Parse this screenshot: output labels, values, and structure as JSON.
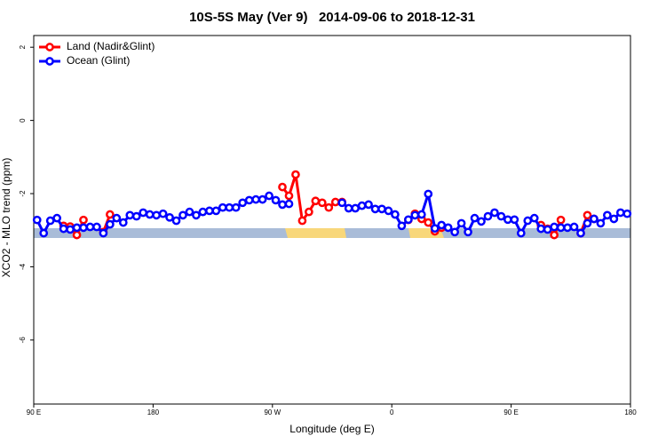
{
  "chart_data": {
    "type": "line",
    "title": "10S-5S May (Ver 9)   2014-09-06 to 2018-12-31",
    "x_label": "Longitude (deg E)",
    "y_label": "XCO2 - MLO trend (ppm)",
    "x": [
      92.5,
      97.5,
      102.5,
      107.5,
      112.5,
      117.5,
      122.5,
      127.5,
      132.5,
      137.5,
      142.5,
      147.5,
      152.5,
      157.5,
      162.5,
      167.5,
      172.5,
      177.5,
      182.5,
      187.5,
      192.5,
      197.5,
      202.5,
      207.5,
      212.5,
      217.5,
      222.5,
      227.5,
      232.5,
      237.5,
      242.5,
      247.5,
      252.5,
      257.5,
      262.5,
      267.5,
      272.5,
      277.5,
      282.5,
      287.5,
      292.5,
      297.5,
      302.5,
      307.5,
      312.5,
      317.5,
      322.5,
      327.5,
      332.5,
      337.5,
      342.5,
      347.5,
      352.5,
      357.5,
      362.5,
      367.5,
      372.5,
      377.5,
      382.5,
      387.5,
      392.5,
      397.5,
      402.5,
      407.5,
      412.5,
      417.5,
      422.5,
      427.5,
      432.5,
      437.5,
      442.5,
      447.5,
      452.5,
      457.5,
      462.5,
      467.5,
      472.5,
      477.5,
      482.5,
      487.5,
      492.5,
      497.5,
      502.5,
      507.5,
      512.5,
      517.5,
      522.5,
      527.5,
      532.5,
      537.5
    ],
    "series": [
      {
        "name": "Land (Nadir&Glint)",
        "color": "#ff0000",
        "values": [
          null,
          null,
          null,
          null,
          -2.88,
          -2.9,
          -3.13,
          -2.72,
          null,
          null,
          -3.05,
          -2.57,
          null,
          null,
          null,
          null,
          null,
          null,
          null,
          null,
          null,
          null,
          null,
          null,
          null,
          null,
          null,
          null,
          null,
          null,
          null,
          null,
          null,
          null,
          null,
          null,
          null,
          -1.82,
          -2.06,
          -1.48,
          -2.74,
          -2.5,
          -2.2,
          -2.25,
          -2.38,
          -2.23,
          -2.23,
          null,
          null,
          null,
          null,
          null,
          null,
          null,
          null,
          null,
          -2.72,
          -2.55,
          -2.69,
          -2.79,
          -3.03,
          -2.93,
          null,
          null,
          null,
          null,
          null,
          null,
          null,
          null,
          null,
          null,
          null,
          null,
          null,
          null,
          -2.86,
          -2.96,
          -3.13,
          -2.72,
          null,
          null,
          -3.08,
          -2.59,
          -2.69,
          null,
          null,
          null,
          null,
          null
        ]
      },
      {
        "name": "Ocean (Glint)",
        "color": "#0000ff",
        "values": [
          -2.72,
          -3.08,
          -2.74,
          -2.67,
          -2.96,
          -2.98,
          -2.93,
          -2.93,
          -2.91,
          -2.91,
          -3.08,
          -2.84,
          -2.67,
          -2.79,
          -2.59,
          -2.62,
          -2.52,
          -2.57,
          -2.59,
          -2.55,
          -2.65,
          -2.74,
          -2.59,
          -2.5,
          -2.59,
          -2.5,
          -2.47,
          -2.47,
          -2.38,
          -2.38,
          -2.38,
          -2.25,
          -2.18,
          -2.16,
          -2.16,
          -2.06,
          -2.18,
          -2.3,
          -2.28,
          null,
          null,
          null,
          null,
          null,
          null,
          null,
          -2.25,
          -2.4,
          -2.4,
          -2.33,
          -2.3,
          -2.42,
          -2.42,
          -2.47,
          -2.57,
          -2.88,
          -2.71,
          -2.59,
          -2.57,
          -2.01,
          -2.95,
          -2.86,
          -2.93,
          -3.05,
          -2.81,
          -3.05,
          -2.67,
          -2.76,
          -2.62,
          -2.52,
          -2.62,
          -2.71,
          -2.71,
          -3.08,
          -2.74,
          -2.67,
          -2.96,
          -2.98,
          -2.91,
          -2.93,
          -2.93,
          -2.91,
          -3.08,
          -2.81,
          -2.69,
          -2.81,
          -2.59,
          -2.69,
          -2.52,
          -2.55
        ]
      }
    ],
    "xlim": [
      90,
      540
    ],
    "xticks": [
      {
        "value": 90,
        "label": "90 E"
      },
      {
        "value": 180,
        "label": "180"
      },
      {
        "value": 270,
        "label": "90 W"
      },
      {
        "value": 360,
        "label": "0"
      },
      {
        "value": 450,
        "label": "90 E"
      },
      {
        "value": 540,
        "label": "180"
      }
    ],
    "ylim": [
      -7.75,
      2.32
    ],
    "yticks": [
      -6,
      -4,
      -2,
      0,
      2
    ],
    "legend": "top-left"
  }
}
